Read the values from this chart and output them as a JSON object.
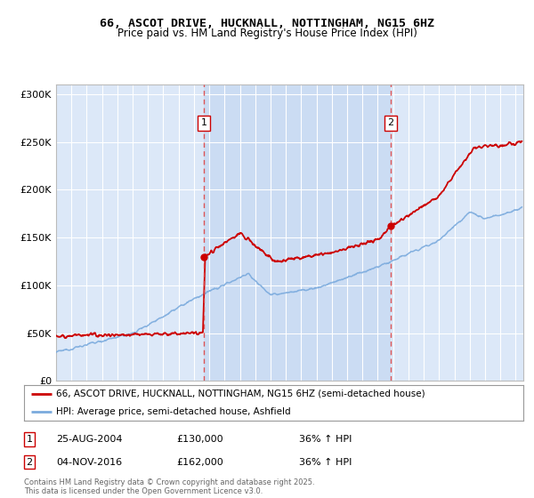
{
  "title": "66, ASCOT DRIVE, HUCKNALL, NOTTINGHAM, NG15 6HZ",
  "subtitle": "Price paid vs. HM Land Registry's House Price Index (HPI)",
  "yticks": [
    0,
    50000,
    100000,
    150000,
    200000,
    250000,
    300000
  ],
  "ytick_labels": [
    "£0",
    "£50K",
    "£100K",
    "£150K",
    "£200K",
    "£250K",
    "£300K"
  ],
  "plot_bg_color": "#dce8f8",
  "shade_color": "#c8d8f0",
  "red_line_color": "#cc0000",
  "blue_line_color": "#7aaadd",
  "dashed_line_color": "#dd4444",
  "marker1_x": 2004.65,
  "marker2_x": 2016.84,
  "legend1": "66, ASCOT DRIVE, HUCKNALL, NOTTINGHAM, NG15 6HZ (semi-detached house)",
  "legend2": "HPI: Average price, semi-detached house, Ashfield",
  "footnote": "Contains HM Land Registry data © Crown copyright and database right 2025.\nThis data is licensed under the Open Government Licence v3.0.",
  "xmin": 1995,
  "xmax": 2025.5,
  "ymin": 0,
  "ymax": 310000
}
